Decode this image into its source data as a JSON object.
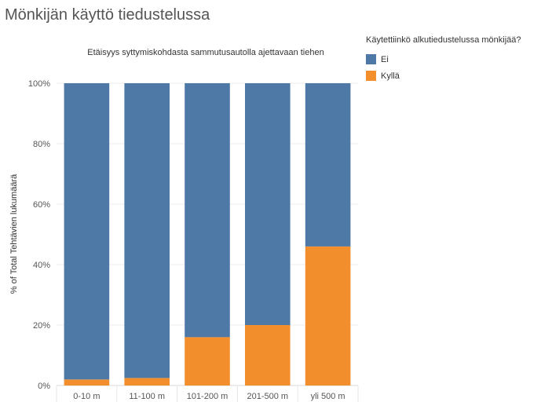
{
  "page": {
    "title": "Mönkijän käyttö tiedustelussa"
  },
  "legend": {
    "title": "Käytettiinkö alkutiedustelussa mönkijää?",
    "items": [
      {
        "label": "Ei",
        "color": "#4e79a7"
      },
      {
        "label": "Kyllä",
        "color": "#f28e2b"
      }
    ]
  },
  "chart_data": {
    "type": "bar",
    "stacked": true,
    "title": "Etäisyys syttymiskohdasta sammutusautolla ajettavaan tiehen",
    "xlabel": "",
    "ylabel": "% of Total Tehtävien lukumäärä",
    "ylim": [
      0,
      100
    ],
    "yticks": [
      "0%",
      "20%",
      "40%",
      "60%",
      "80%",
      "100%"
    ],
    "categories": [
      "0-10 m",
      "11-100 m",
      "101-200 m",
      "201-500 m",
      "yli 500 m"
    ],
    "series": [
      {
        "name": "Kyllä",
        "color": "#f28e2b",
        "values": [
          2,
          2.5,
          16,
          20,
          46
        ]
      },
      {
        "name": "Ei",
        "color": "#4e79a7",
        "values": [
          98,
          97.5,
          84,
          80,
          54
        ]
      }
    ],
    "grid": true,
    "legend_position": "right"
  }
}
